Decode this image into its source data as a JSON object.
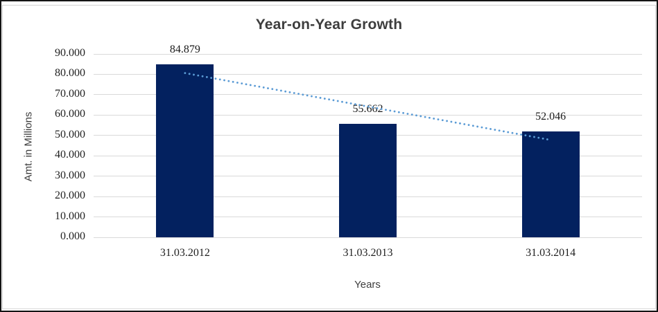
{
  "chart_data": {
    "type": "bar",
    "title": "Year-on-Year Growth",
    "xlabel": "Years",
    "ylabel": "Amt. in Millions",
    "categories": [
      "31.03.2012",
      "31.03.2013",
      "31.03.2014"
    ],
    "values": [
      84.879,
      55.662,
      52.046
    ],
    "data_labels": [
      "84.879",
      "55.662",
      "52.046"
    ],
    "y_ticks": [
      "0.000",
      "10.000",
      "20.000",
      "30.000",
      "40.000",
      "50.000",
      "60.000",
      "70.000",
      "80.000",
      "90.000"
    ],
    "ylim": [
      0,
      90
    ],
    "grid": true,
    "legend": "none",
    "bar_color": "#03215F",
    "gridline_color": "#d9d9d9",
    "trendline": {
      "type": "linear",
      "style": "dotted",
      "color": "#5B9BD5"
    }
  }
}
